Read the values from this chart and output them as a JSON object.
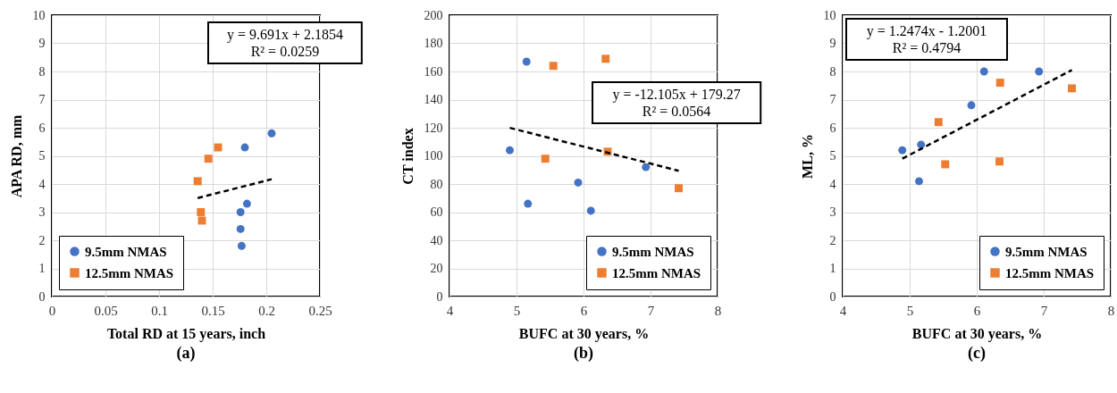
{
  "chart_data": [
    {
      "type": "scatter",
      "title": "(a)",
      "xlabel": "Total RD at 15 years, inch",
      "ylabel": "APA RD, mm",
      "xlim": [
        0,
        0.25
      ],
      "xticks": [
        0,
        0.05,
        0.1,
        0.15,
        0.2,
        0.25
      ],
      "ylim": [
        0,
        10
      ],
      "yticks": [
        0,
        1,
        2,
        3,
        4,
        5,
        6,
        7,
        8,
        9,
        10
      ],
      "grid": true,
      "legend": "bottom left",
      "annotations": [
        "y = 9.691x + 2.1854",
        "R² = 0.0259"
      ],
      "series": [
        {
          "name": "9.5mm NMAS",
          "color": "#4472c4",
          "marker": "circle",
          "x": [
            0.205,
            0.18,
            0.182,
            0.176,
            0.176,
            0.177
          ],
          "values": [
            5.8,
            5.3,
            3.3,
            3.0,
            2.4,
            1.8
          ]
        },
        {
          "name": "12.5mm NMAS",
          "color": "#ed7d31",
          "marker": "square",
          "x": [
            0.155,
            0.146,
            0.136,
            0.139,
            0.14
          ],
          "values": [
            5.3,
            4.9,
            4.1,
            3.0,
            2.7
          ]
        },
        {
          "type": "line",
          "color": "#000000",
          "line_style": "dashed",
          "marker": "none",
          "x": [
            0.136,
            0.205
          ],
          "values": [
            3.5,
            4.17
          ]
        }
      ]
    },
    {
      "type": "scatter",
      "title": "(b)",
      "xlabel": "BUFC at 30 years, %",
      "ylabel": "CT index",
      "xlim": [
        4,
        8
      ],
      "xticks": [
        4,
        5,
        6,
        7,
        8
      ],
      "ylim": [
        0,
        200
      ],
      "yticks": [
        0,
        20,
        40,
        60,
        80,
        100,
        120,
        140,
        160,
        180,
        200
      ],
      "grid": true,
      "legend": "bottom right",
      "annotations": [
        "y = -12.105x + 179.27",
        "R² = 0.0564"
      ],
      "series": [
        {
          "name": "9.5mm NMAS",
          "color": "#4472c4",
          "marker": "circle",
          "x": [
            5.15,
            4.9,
            5.17,
            5.92,
            6.11,
            6.93
          ],
          "values": [
            167,
            104,
            66,
            81,
            61,
            92
          ]
        },
        {
          "name": "12.5mm NMAS",
          "color": "#ed7d31",
          "marker": "square",
          "x": [
            5.55,
            6.33,
            5.43,
            6.36,
            7.42
          ],
          "values": [
            164,
            169,
            98,
            103,
            77
          ]
        },
        {
          "type": "line",
          "color": "#000000",
          "line_style": "dashed",
          "marker": "none",
          "x": [
            4.9,
            7.42
          ],
          "values": [
            119.9,
            89.4
          ]
        }
      ]
    },
    {
      "type": "scatter",
      "title": "(c)",
      "xlabel": "BUFC at 30 years, %",
      "ylabel": "ML, %",
      "xlim": [
        4,
        8
      ],
      "xticks": [
        4,
        5,
        6,
        7,
        8
      ],
      "ylim": [
        0,
        10
      ],
      "yticks": [
        0,
        1,
        2,
        3,
        4,
        5,
        6,
        7,
        8,
        9,
        10
      ],
      "grid": true,
      "legend": "bottom right",
      "annotations": [
        "y = 1.2474x - 1.2001",
        "R² = 0.4794"
      ],
      "series": [
        {
          "name": "9.5mm NMAS",
          "color": "#4472c4",
          "marker": "circle",
          "x": [
            4.89,
            5.17,
            5.14,
            5.92,
            6.11,
            6.93
          ],
          "values": [
            5.2,
            5.4,
            4.1,
            6.8,
            8.0,
            8.0
          ]
        },
        {
          "name": "12.5mm NMAS",
          "color": "#ed7d31",
          "marker": "square",
          "x": [
            5.43,
            5.53,
            6.35,
            6.34,
            7.42
          ],
          "values": [
            6.2,
            4.7,
            7.6,
            4.8,
            7.4
          ]
        },
        {
          "type": "line",
          "color": "#000000",
          "line_style": "dashed",
          "marker": "none",
          "x": [
            4.89,
            7.42
          ],
          "values": [
            4.9,
            8.05
          ]
        }
      ]
    }
  ]
}
